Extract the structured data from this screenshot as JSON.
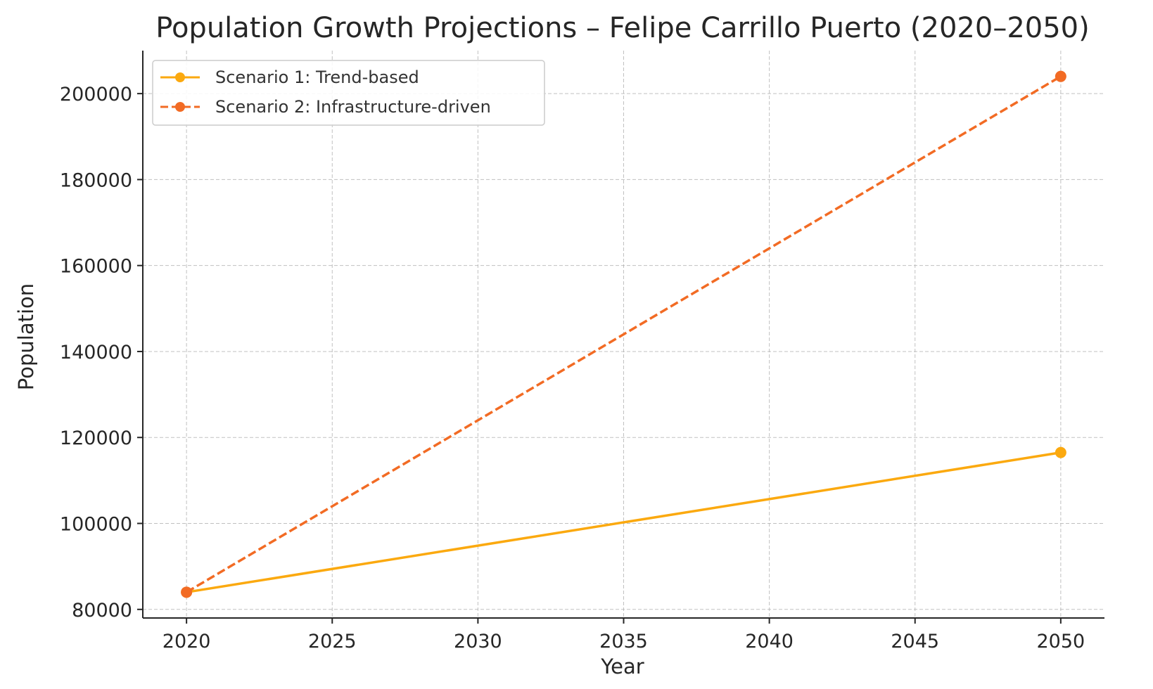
{
  "chart_data": {
    "type": "line",
    "title": "Population Growth Projections – Felipe Carrillo Puerto (2020–2050)",
    "xlabel": "Year",
    "ylabel": "Population",
    "x": [
      2020,
      2050
    ],
    "xticks": [
      2020,
      2025,
      2030,
      2035,
      2040,
      2045,
      2050
    ],
    "yticks": [
      80000,
      100000,
      120000,
      140000,
      160000,
      180000,
      200000
    ],
    "xlim": [
      2018.5,
      2051.5
    ],
    "ylim": [
      78000,
      210000
    ],
    "grid": true,
    "legend_position": "top-left",
    "series": [
      {
        "name": "Scenario 1: Trend-based",
        "values": [
          84000,
          116500
        ],
        "color": "#FBA90F",
        "line_style": "solid",
        "marker": "circle"
      },
      {
        "name": "Scenario 2: Infrastructure-driven",
        "values": [
          84000,
          204000
        ],
        "color": "#F26B24",
        "line_style": "dashed",
        "marker": "circle"
      }
    ]
  }
}
